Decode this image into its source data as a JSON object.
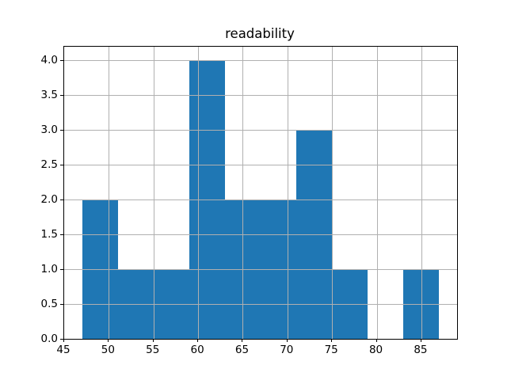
{
  "chart_data": {
    "type": "bar",
    "subtype": "histogram",
    "title": "readability",
    "xlabel": "",
    "ylabel": "",
    "bin_edges": [
      47,
      51,
      55,
      59,
      63,
      67,
      71,
      75,
      79,
      83,
      87
    ],
    "counts": [
      2,
      1,
      1,
      4,
      2,
      2,
      3,
      1,
      0,
      1
    ],
    "xlim": [
      45,
      89
    ],
    "ylim": [
      0,
      4.2
    ],
    "x_ticks": [
      45,
      50,
      55,
      60,
      65,
      70,
      75,
      80,
      85
    ],
    "y_ticks": [
      0.0,
      0.5,
      1.0,
      1.5,
      2.0,
      2.5,
      3.0,
      3.5,
      4.0
    ],
    "y_tick_decimals": 1,
    "grid": true,
    "legend": "none",
    "colors": {
      "bar": "#1f77b4",
      "grid": "#b0b0b0",
      "spine": "#000000",
      "text": "#000000",
      "background": "#ffffff"
    }
  }
}
